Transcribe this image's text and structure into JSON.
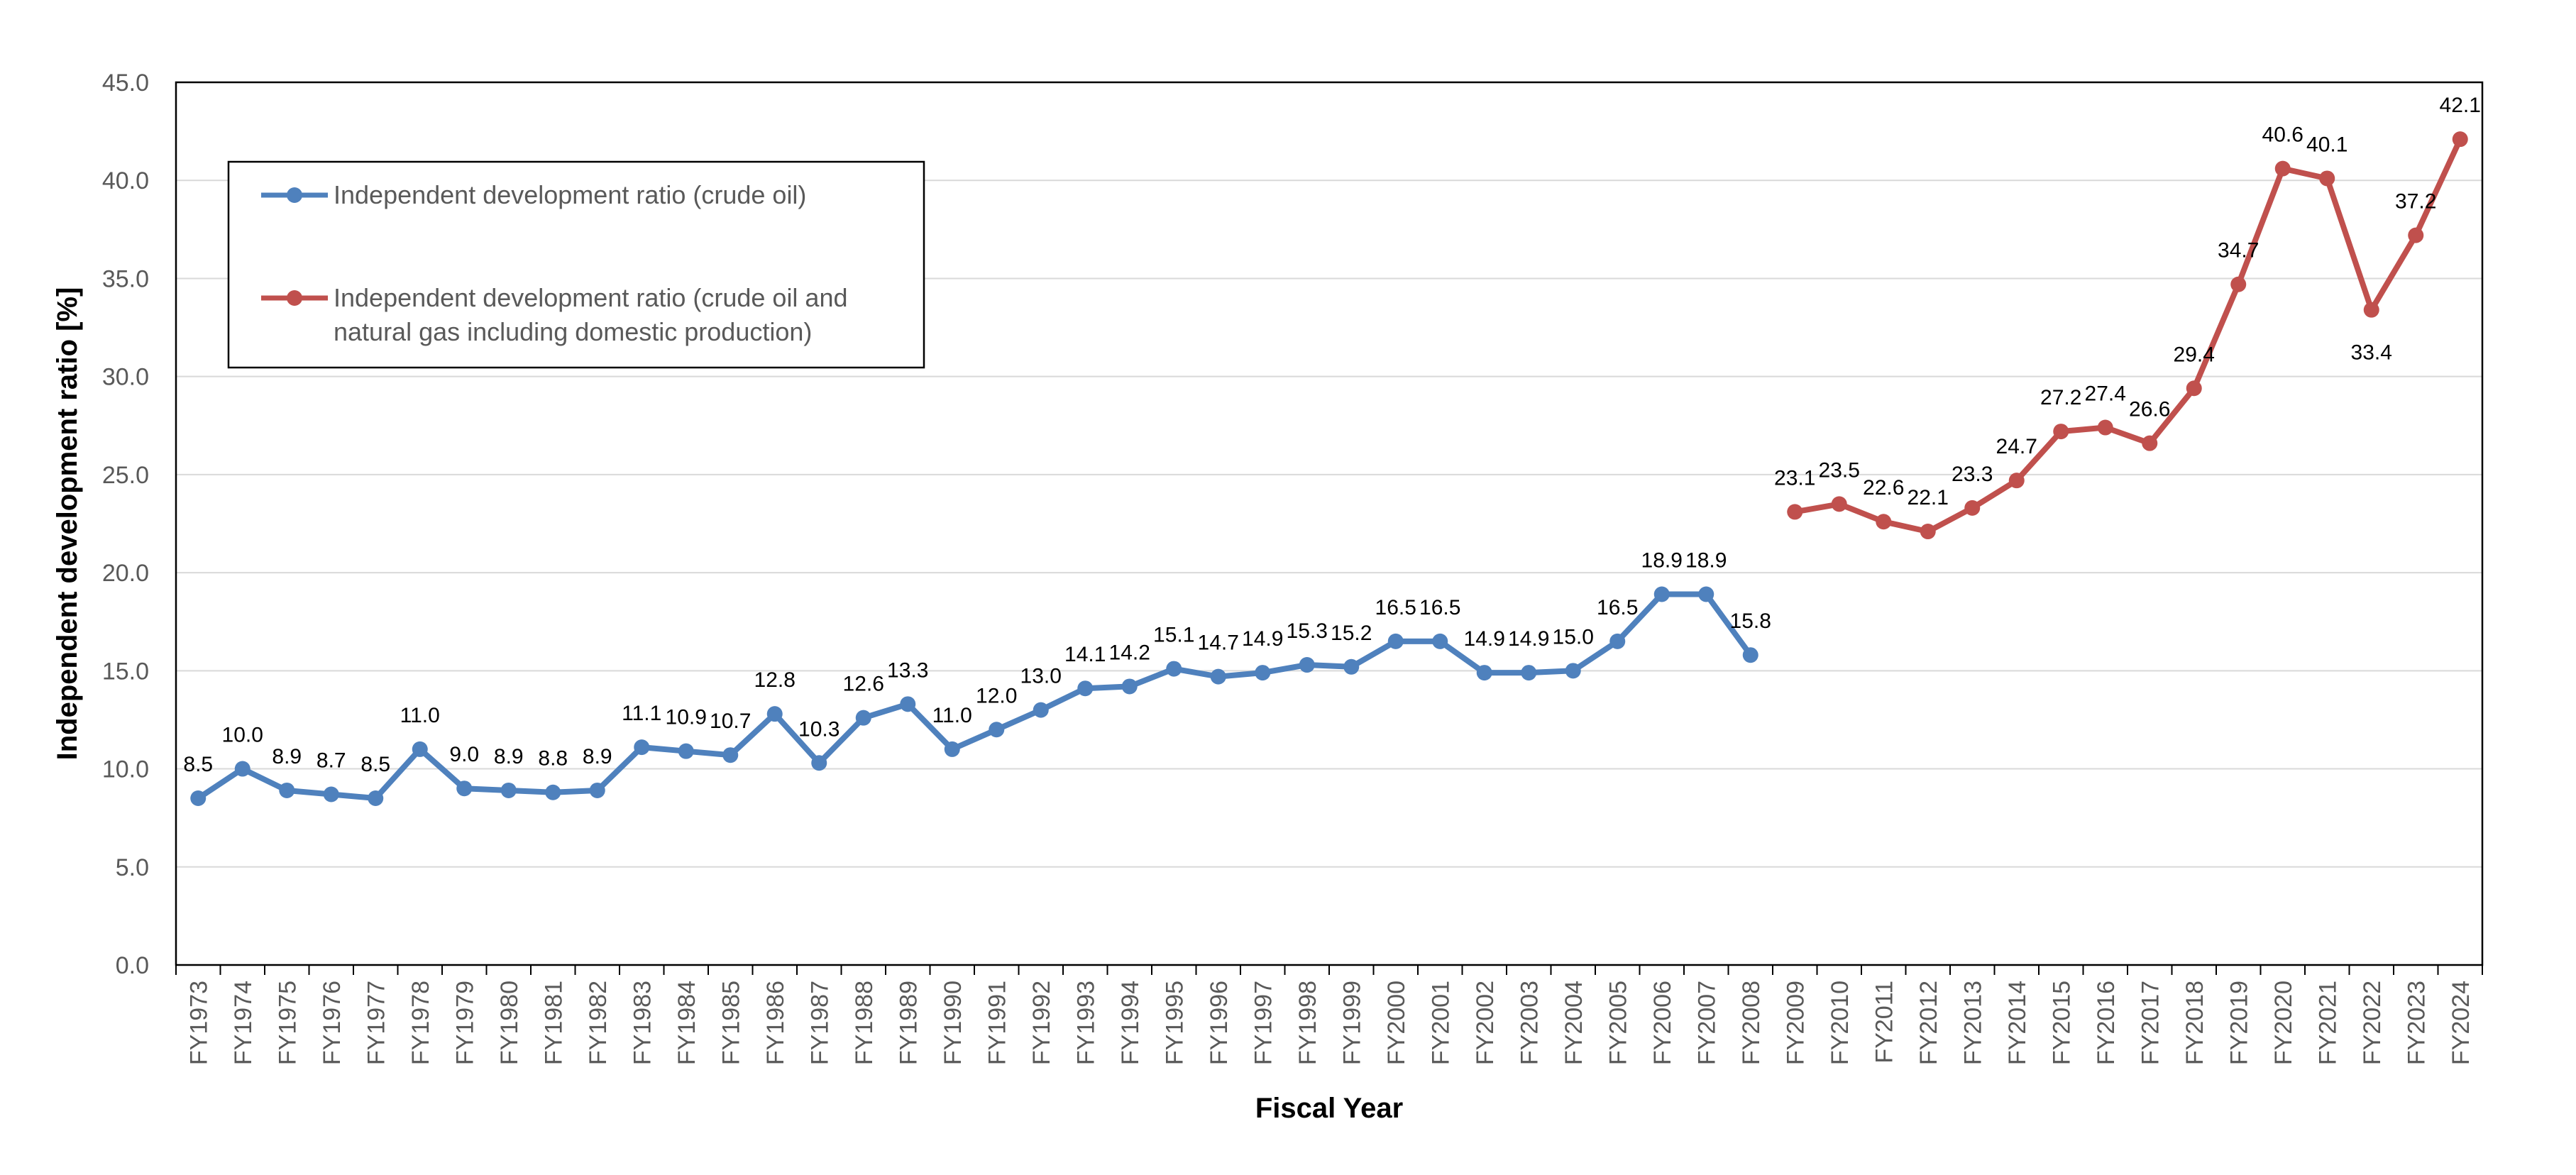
{
  "chart_data": {
    "type": "line",
    "title": "",
    "xlabel": "Fiscal Year",
    "ylabel": "Independent development ratio  [%]",
    "ylim": [
      0,
      45
    ],
    "y_ticks": [
      "0.0",
      "5.0",
      "10.0",
      "15.0",
      "20.0",
      "25.0",
      "30.0",
      "35.0",
      "40.0",
      "45.0"
    ],
    "grid": "horizontal",
    "legend_position": "top-left, inside plot",
    "categories": [
      "FY1973",
      "FY1974",
      "FY1975",
      "FY1976",
      "FY1977",
      "FY1978",
      "FY1979",
      "FY1980",
      "FY1981",
      "FY1982",
      "FY1983",
      "FY1984",
      "FY1985",
      "FY1986",
      "FY1987",
      "FY1988",
      "FY1989",
      "FY1990",
      "FY1991",
      "FY1992",
      "FY1993",
      "FY1994",
      "FY1995",
      "FY1996",
      "FY1997",
      "FY1998",
      "FY1999",
      "FY2000",
      "FY2001",
      "FY2002",
      "FY2003",
      "FY2004",
      "FY2005",
      "FY2006",
      "FY2007",
      "FY2008",
      "FY2009",
      "FY2010",
      "FY2011",
      "FY2012",
      "FY2013",
      "FY2014",
      "FY2015",
      "FY2016",
      "FY2017",
      "FY2018",
      "FY2019",
      "FY2020",
      "FY2021",
      "FY2022",
      "FY2023",
      "FY2024"
    ],
    "series": [
      {
        "name": "Independent development ratio (crude oil)",
        "color": "#4f81bd",
        "values": [
          8.5,
          10.0,
          8.9,
          8.7,
          8.5,
          11.0,
          9.0,
          8.9,
          8.8,
          8.9,
          11.1,
          10.9,
          10.7,
          12.8,
          10.3,
          12.6,
          13.3,
          11.0,
          12.0,
          13.0,
          14.1,
          14.2,
          15.1,
          14.7,
          14.9,
          15.3,
          15.2,
          16.5,
          16.5,
          14.9,
          14.9,
          15.0,
          16.5,
          18.9,
          18.9,
          15.8,
          null,
          null,
          null,
          null,
          null,
          null,
          null,
          null,
          null,
          null,
          null,
          null,
          null,
          null,
          null,
          null
        ],
        "labels": [
          "8.5",
          "10.0",
          "8.9",
          "8.7",
          "8.5",
          "11.0",
          "9.0",
          "8.9",
          "8.8",
          "8.9",
          "11.1",
          "10.9",
          "10.7",
          "12.8",
          "10.3",
          "12.6",
          "13.3",
          "11.0",
          "12.0",
          "13.0",
          "14.1",
          "14.2",
          "15.1",
          "14.7",
          "14.9",
          "15.3",
          "15.2",
          "16.5",
          "16.5",
          "14.9",
          "14.9",
          "15.0",
          "16.5",
          "18.9",
          "18.9",
          "15.8",
          null,
          null,
          null,
          null,
          null,
          null,
          null,
          null,
          null,
          null,
          null,
          null,
          null,
          null,
          null,
          null
        ]
      },
      {
        "name": "Independent development ratio  (crude oil and natural gas including domestic production)",
        "name_lines": [
          "Independent development ratio  (crude oil and",
          "natural gas including domestic production)"
        ],
        "color": "#c0504d",
        "values": [
          null,
          null,
          null,
          null,
          null,
          null,
          null,
          null,
          null,
          null,
          null,
          null,
          null,
          null,
          null,
          null,
          null,
          null,
          null,
          null,
          null,
          null,
          null,
          null,
          null,
          null,
          null,
          null,
          null,
          null,
          null,
          null,
          null,
          null,
          null,
          null,
          23.1,
          23.5,
          22.6,
          22.1,
          23.3,
          24.7,
          27.2,
          27.4,
          26.6,
          29.4,
          34.7,
          40.6,
          40.1,
          33.4,
          37.2,
          42.1
        ],
        "labels": [
          null,
          null,
          null,
          null,
          null,
          null,
          null,
          null,
          null,
          null,
          null,
          null,
          null,
          null,
          null,
          null,
          null,
          null,
          null,
          null,
          null,
          null,
          null,
          null,
          null,
          null,
          null,
          null,
          null,
          null,
          null,
          null,
          null,
          null,
          null,
          null,
          "23.1",
          "23.5",
          "22.6",
          "22.1",
          "23.3",
          "24.7",
          "27.2",
          "27.4",
          "26.6",
          "29.4",
          "34.7",
          "40.6",
          "40.1",
          "33.4",
          "37.2",
          "42.1"
        ]
      }
    ]
  }
}
